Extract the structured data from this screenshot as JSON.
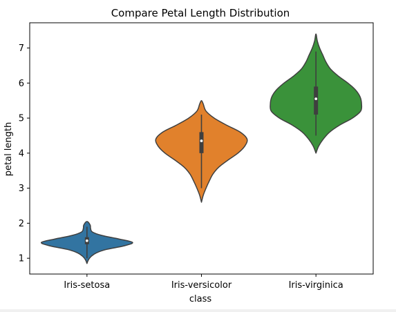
{
  "chart_data": {
    "type": "violin",
    "title": "Compare Petal Length Distribution",
    "xlabel": "class",
    "ylabel": "petal length",
    "categories": [
      "Iris-setosa",
      "Iris-versicolor",
      "Iris-virginica"
    ],
    "ylim": [
      0.55,
      7.72
    ],
    "yticks": [
      "1",
      "2",
      "3",
      "4",
      "5",
      "6",
      "7"
    ],
    "grid": false,
    "colors": [
      "#3274a1",
      "#e1812c",
      "#3a923a"
    ],
    "series": [
      {
        "category": "Iris-setosa",
        "min": 1.0,
        "q1": 1.4,
        "median": 1.5,
        "q3": 1.6,
        "max": 1.9,
        "kde_min": 0.85,
        "kde_max": 2.05,
        "density_profile": [
          [
            0.85,
            0.0
          ],
          [
            0.95,
            0.03
          ],
          [
            1.05,
            0.09
          ],
          [
            1.15,
            0.2
          ],
          [
            1.25,
            0.42
          ],
          [
            1.35,
            0.8
          ],
          [
            1.45,
            1.0
          ],
          [
            1.55,
            0.7
          ],
          [
            1.65,
            0.33
          ],
          [
            1.75,
            0.12
          ],
          [
            1.85,
            0.08
          ],
          [
            1.95,
            0.07
          ],
          [
            2.05,
            0.0
          ]
        ]
      },
      {
        "category": "Iris-versicolor",
        "min": 3.0,
        "q1": 4.0,
        "median": 4.35,
        "q3": 4.6,
        "max": 5.1,
        "kde_min": 2.6,
        "kde_max": 5.5,
        "density_profile": [
          [
            2.6,
            0.0
          ],
          [
            2.8,
            0.04
          ],
          [
            3.0,
            0.1
          ],
          [
            3.2,
            0.17
          ],
          [
            3.4,
            0.25
          ],
          [
            3.6,
            0.38
          ],
          [
            3.8,
            0.58
          ],
          [
            4.0,
            0.8
          ],
          [
            4.2,
            0.95
          ],
          [
            4.4,
            1.0
          ],
          [
            4.6,
            0.85
          ],
          [
            4.8,
            0.55
          ],
          [
            5.0,
            0.28
          ],
          [
            5.2,
            0.1
          ],
          [
            5.4,
            0.04
          ],
          [
            5.5,
            0.0
          ]
        ]
      },
      {
        "category": "Iris-virginica",
        "min": 4.5,
        "q1": 5.1,
        "median": 5.55,
        "q3": 5.9,
        "max": 6.9,
        "kde_min": 4.0,
        "kde_max": 7.4,
        "density_profile": [
          [
            4.0,
            0.0
          ],
          [
            4.2,
            0.06
          ],
          [
            4.4,
            0.16
          ],
          [
            4.6,
            0.3
          ],
          [
            4.8,
            0.52
          ],
          [
            5.0,
            0.8
          ],
          [
            5.2,
            0.98
          ],
          [
            5.4,
            1.0
          ],
          [
            5.6,
            0.97
          ],
          [
            5.8,
            0.87
          ],
          [
            6.0,
            0.7
          ],
          [
            6.2,
            0.49
          ],
          [
            6.4,
            0.32
          ],
          [
            6.6,
            0.22
          ],
          [
            6.8,
            0.15
          ],
          [
            7.0,
            0.08
          ],
          [
            7.2,
            0.03
          ],
          [
            7.4,
            0.0
          ]
        ]
      }
    ]
  }
}
